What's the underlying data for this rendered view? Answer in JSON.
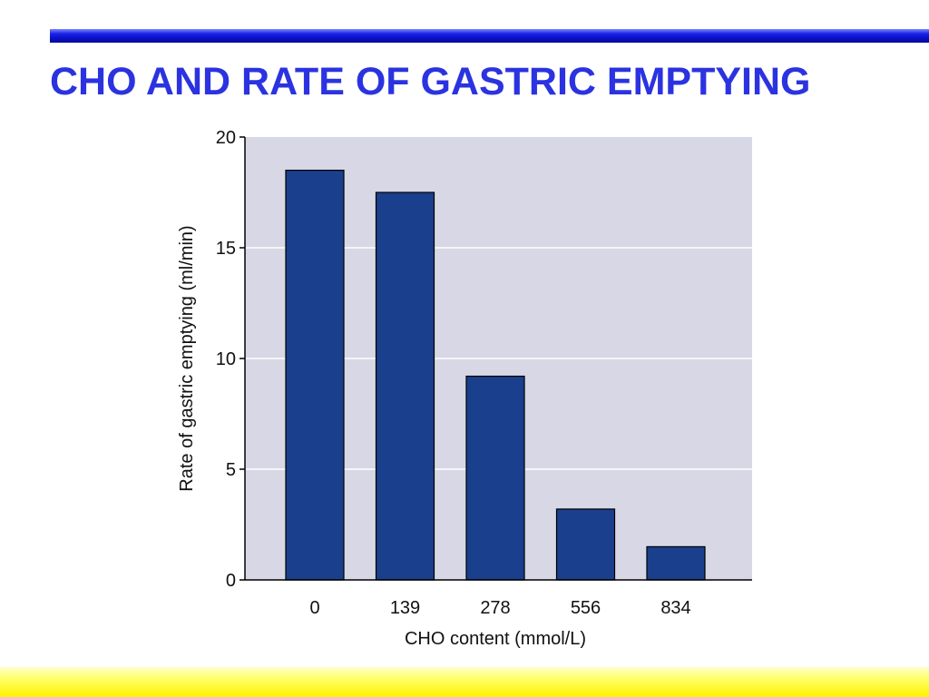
{
  "slide": {
    "title": "CHO AND RATE OF GASTRIC EMPTYING"
  },
  "colors": {
    "title": "#2b33e0",
    "top_rule": "#0a0fc4",
    "bar_fill": "#1a3f8c",
    "plot_background": "#d7d7e6",
    "bottom_band": "#fff200"
  },
  "chart_data": {
    "type": "bar",
    "title": "",
    "xlabel": "CHO content (mmol/L)",
    "ylabel": "Rate of gastric emptying (ml/min)",
    "categories": [
      "0",
      "139",
      "278",
      "556",
      "834"
    ],
    "values": [
      18.5,
      17.5,
      9.2,
      3.2,
      1.5
    ],
    "ylim": [
      0,
      20
    ],
    "yticks": [
      0,
      5,
      10,
      15,
      20
    ],
    "grid": true,
    "legend": "none"
  }
}
